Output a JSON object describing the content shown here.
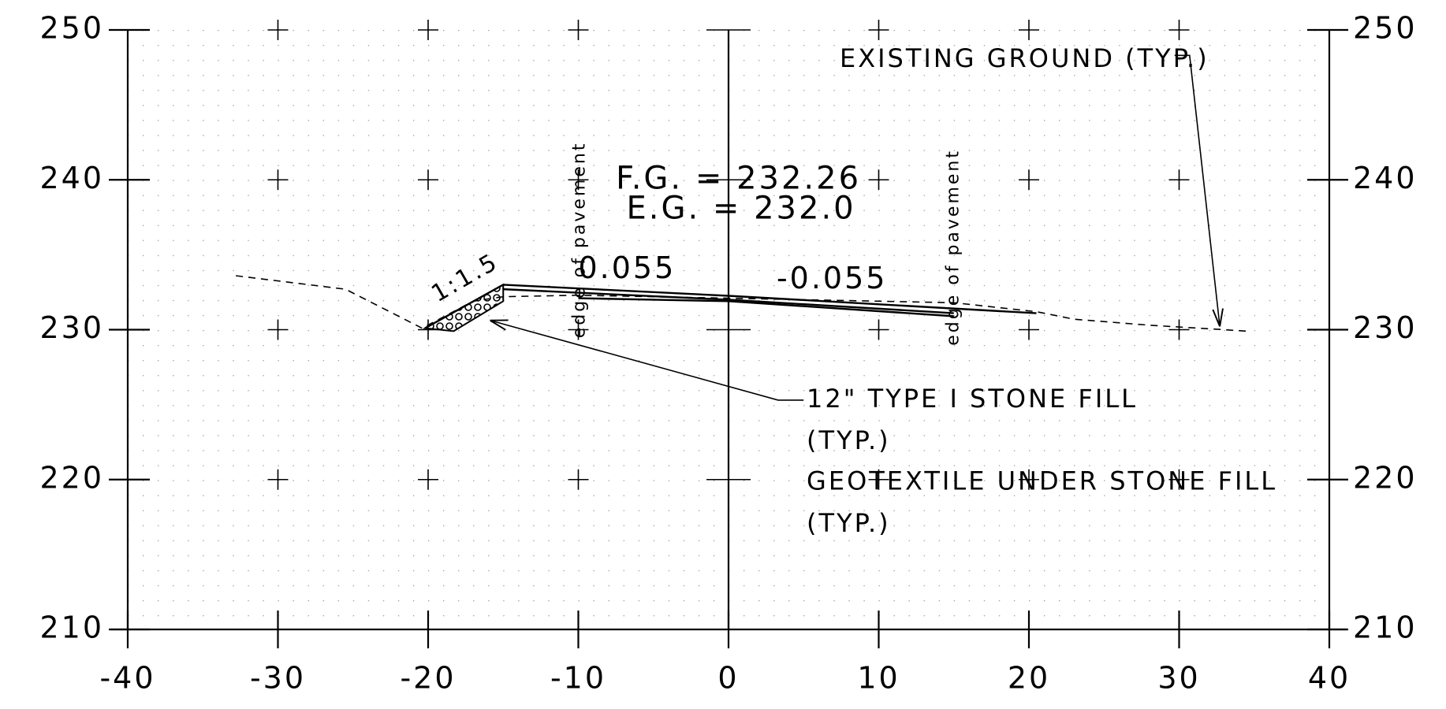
{
  "chart_data": {
    "type": "line",
    "xlim": [
      -40,
      40
    ],
    "ylim": [
      210,
      250
    ],
    "xticks": [
      -40,
      -30,
      -20,
      -10,
      0,
      10,
      20,
      30,
      40
    ],
    "yticks": [
      210,
      220,
      230,
      240,
      250
    ],
    "grid": true,
    "series": [
      {
        "color": "#000000",
        "dashed": true,
        "x": [
          -32.8,
          -25.5,
          -20.4,
          -17,
          -15,
          -10,
          0,
          10,
          15,
          20.5,
          23,
          28,
          33,
          34.5
        ],
        "values": [
          233.6,
          232.7,
          230.1,
          231.9,
          232.2,
          232.3,
          232.1,
          231.9,
          231.8,
          231.2,
          230.7,
          230.3,
          230.0,
          229.9
        ]
      },
      {
        "color": "#000000",
        "dashed": false,
        "x": [
          -20.2,
          -15,
          0,
          20.5
        ],
        "values": [
          230.1,
          233.0,
          232.26,
          231.1
        ]
      },
      {
        "color": "#000000",
        "dashed": false,
        "x": [
          -15,
          0,
          15
        ],
        "values": [
          232.7,
          232.0,
          231.1
        ]
      },
      {
        "color": "#000000",
        "dashed": false,
        "x": [
          -10,
          0,
          15
        ],
        "values": [
          232.1,
          231.9,
          230.9
        ]
      }
    ],
    "annotations": [
      "EXISTING GROUND (TYP.)",
      "F.G. = 232.26",
      "E.G. = 232.0",
      "0.055",
      "-0.055",
      "1:1.5",
      "edge of pavement",
      "edge of pavement",
      "12\" TYPE I STONE FILL",
      "(TYP.)",
      "GEOTEXTILE UNDER STONE FILL",
      "(TYP.)"
    ]
  }
}
